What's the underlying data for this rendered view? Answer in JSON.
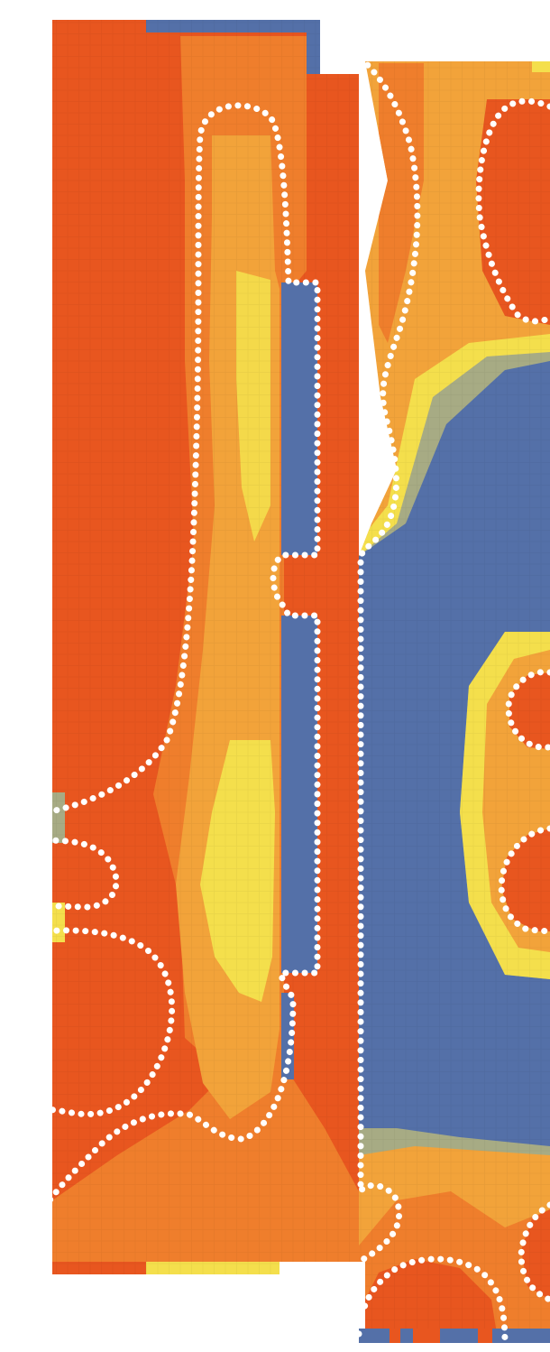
{
  "colors": {
    "background": "#ffffff",
    "orange": "#e8561f",
    "orange_light": "#ef7e2c",
    "amber": "#f2a33a",
    "yellow": "#f4df4c",
    "sage": "#a7ab84",
    "blue": "#5470a8",
    "dots": "#ffffff",
    "dots_faded": "#dfdfdf"
  },
  "palette": [
    "#e8561f",
    "#ec6a24",
    "#f08c2e",
    "#f2a43a",
    "#f2c043",
    "#f4df4c",
    "#c9c466",
    "#a7ab84",
    "#7d8fa0",
    "#5470a8"
  ],
  "regions": [
    {
      "name": "left-domain",
      "kind": "field"
    },
    {
      "name": "right-domain",
      "kind": "field"
    },
    {
      "name": "upper-channel",
      "kind": "solid"
    },
    {
      "name": "lower-channel",
      "kind": "solid"
    },
    {
      "name": "right-cavity",
      "kind": "solid"
    }
  ],
  "contours": [
    "left-inner-loop",
    "upper-channel-outline",
    "lower-channel-outline",
    "left-lower-wave",
    "left-bulb-small",
    "left-bulb-large",
    "right-boundary",
    "right-top-loop",
    "right-mid-loop-upper",
    "right-mid-loop-lower",
    "right-bottom-arc",
    "right-bottom-loop"
  ]
}
